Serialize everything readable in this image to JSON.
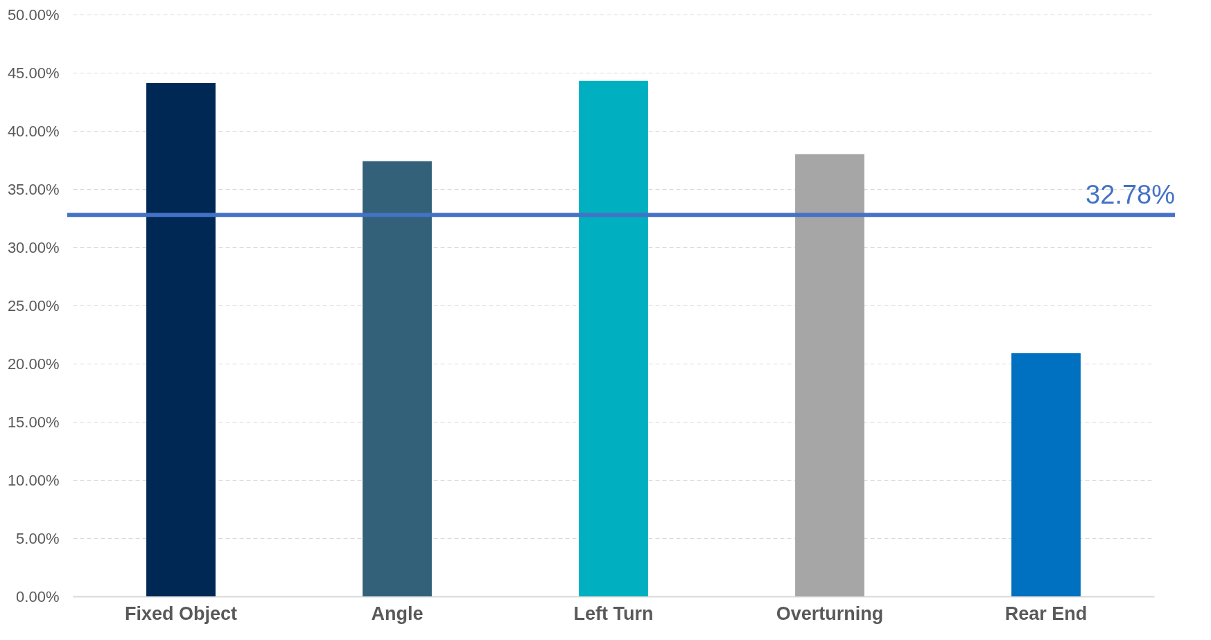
{
  "chart_data": {
    "type": "bar",
    "categories": [
      "Fixed Object",
      "Angle",
      "Left Turn",
      "Overturning",
      "Rear End"
    ],
    "values": [
      44.1,
      37.4,
      44.3,
      38.0,
      20.9
    ],
    "colors": [
      "#002855",
      "#336179",
      "#00b0c0",
      "#a6a6a6",
      "#0070c0"
    ],
    "ylim": [
      0,
      50
    ],
    "yticks": [
      {
        "value": 0,
        "label": "0.00%"
      },
      {
        "value": 5,
        "label": "5.00%"
      },
      {
        "value": 10,
        "label": "10.00%"
      },
      {
        "value": 15,
        "label": "15.00%"
      },
      {
        "value": 20,
        "label": "20.00%"
      },
      {
        "value": 25,
        "label": "25.00%"
      },
      {
        "value": 30,
        "label": "30.00%"
      },
      {
        "value": 35,
        "label": "35.00%"
      },
      {
        "value": 40,
        "label": "40.00%"
      },
      {
        "value": 45,
        "label": "45.00%"
      },
      {
        "value": 50,
        "label": "50.00%"
      }
    ],
    "ref_lines": [
      {
        "axis": "y",
        "value": 32.78,
        "label": "32.78%",
        "color": "#4472c4"
      }
    ],
    "grid": "y"
  }
}
